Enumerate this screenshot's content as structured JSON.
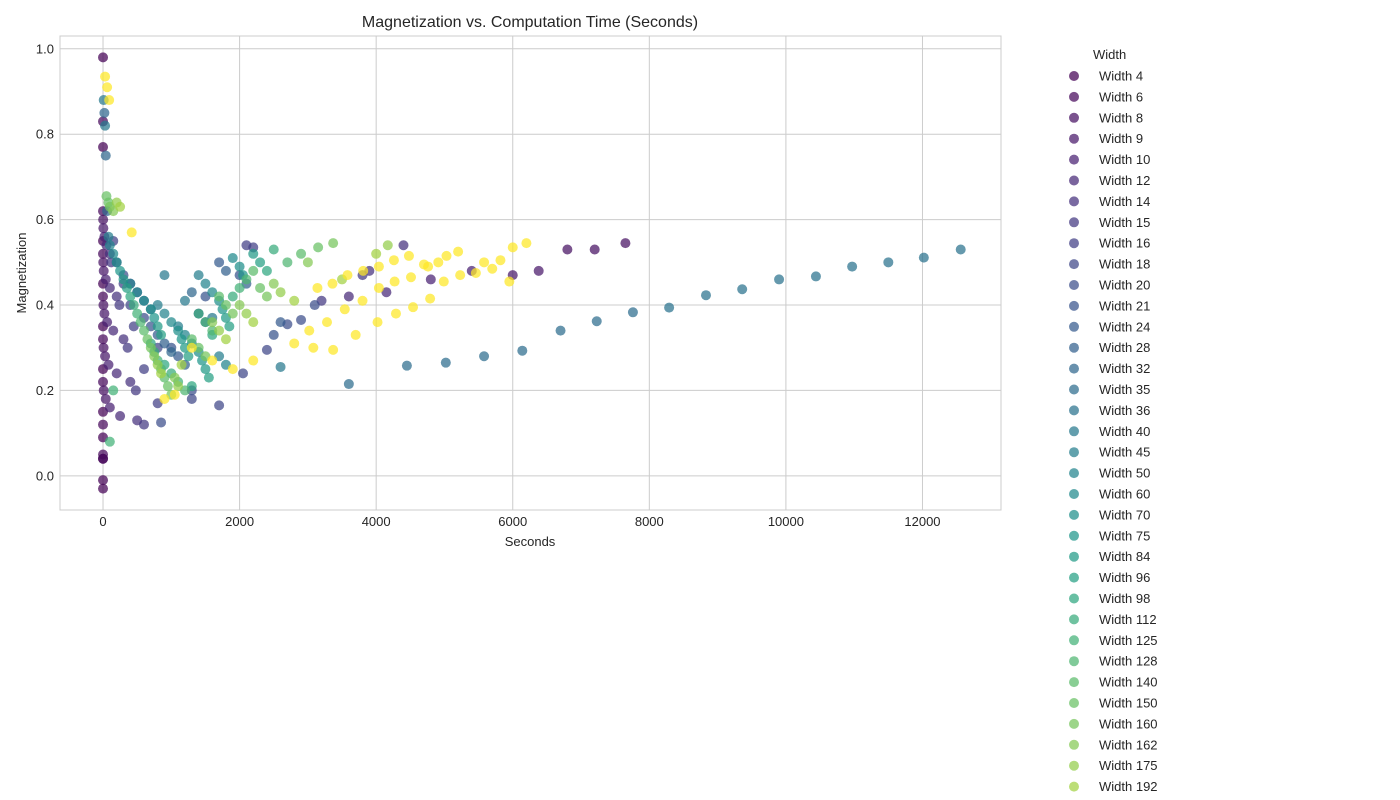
{
  "chart_data": {
    "type": "scatter",
    "title": "Magnetization vs. Computation Time (Seconds)",
    "xlabel": "Seconds",
    "ylabel": "Magnetization",
    "xlim": [
      -630,
      13150
    ],
    "ylim": [
      -0.08,
      1.03
    ],
    "x_ticks": [
      0,
      2000,
      4000,
      6000,
      8000,
      10000,
      12000
    ],
    "x_tick_labels": [
      "0",
      "2000",
      "4000",
      "6000",
      "8000",
      "10000",
      "12000"
    ],
    "y_ticks": [
      0.0,
      0.2,
      0.4,
      0.6,
      0.8,
      1.0
    ],
    "y_tick_labels": [
      "0.0",
      "0.2",
      "0.4",
      "0.6",
      "0.8",
      "1.0"
    ],
    "grid": true,
    "colormap": "viridis",
    "legend": {
      "title": "Width",
      "placement": "outside-right",
      "entries": [
        "Width 4",
        "Width 6",
        "Width 8",
        "Width 9",
        "Width 10",
        "Width 12",
        "Width 14",
        "Width 15",
        "Width 16",
        "Width 18",
        "Width 20",
        "Width 21",
        "Width 24",
        "Width 28",
        "Width 32",
        "Width 35",
        "Width 36",
        "Width 40",
        "Width 45",
        "Width 50",
        "Width 60",
        "Width 70",
        "Width 75",
        "Width 84",
        "Width 96",
        "Width 98",
        "Width 112",
        "Width 125",
        "Width 128",
        "Width 140",
        "Width 150",
        "Width 160",
        "Width 162",
        "Width 175",
        "Width 192"
      ]
    },
    "series": [
      {
        "name": "Width 4",
        "color": "#440154",
        "x": [
          0,
          0,
          0,
          0,
          0,
          0,
          0,
          0,
          0,
          0,
          0
        ],
        "y": [
          0.98,
          0.77,
          0.55,
          0.45,
          0.35,
          0.25,
          0.15,
          0.09,
          0.04,
          -0.01,
          -0.03
        ]
      },
      {
        "name": "Width 6",
        "color": "#46085c",
        "x": [
          0,
          0,
          0,
          0,
          0,
          0,
          0,
          0,
          0
        ],
        "y": [
          0.83,
          0.62,
          0.52,
          0.42,
          0.32,
          0.22,
          0.12,
          0.05,
          0.04
        ]
      },
      {
        "name": "Width 8",
        "color": "#471063",
        "x": [
          2,
          4,
          6,
          8,
          10,
          6800,
          7200,
          7650
        ],
        "y": [
          0.6,
          0.5,
          0.4,
          0.3,
          0.2,
          0.53,
          0.53,
          0.545
        ]
      },
      {
        "name": "Width 9",
        "color": "#48186a",
        "x": [
          5,
          10,
          20,
          30,
          40,
          6000,
          6380
        ],
        "y": [
          0.58,
          0.48,
          0.38,
          0.28,
          0.18,
          0.47,
          0.48
        ]
      },
      {
        "name": "Width 10",
        "color": "#482071",
        "x": [
          20,
          40,
          60,
          80,
          100,
          4800,
          5400
        ],
        "y": [
          0.56,
          0.46,
          0.36,
          0.26,
          0.16,
          0.46,
          0.48
        ]
      },
      {
        "name": "Width 12",
        "color": "#472877",
        "x": [
          50,
          100,
          150,
          200,
          250,
          3600,
          4150
        ],
        "y": [
          0.54,
          0.44,
          0.34,
          0.24,
          0.14,
          0.42,
          0.43
        ]
      },
      {
        "name": "Width 14",
        "color": "#45307d",
        "x": [
          100,
          200,
          300,
          400,
          500,
          3900,
          4400
        ],
        "y": [
          0.52,
          0.42,
          0.32,
          0.22,
          0.13,
          0.48,
          0.54
        ]
      },
      {
        "name": "Width 15",
        "color": "#433781",
        "x": [
          120,
          240,
          360,
          480,
          600,
          3200,
          3800
        ],
        "y": [
          0.5,
          0.4,
          0.3,
          0.2,
          0.12,
          0.41,
          0.47
        ]
      },
      {
        "name": "Width 16",
        "color": "#413e85",
        "x": [
          150,
          300,
          450,
          600,
          800,
          2100,
          2200
        ],
        "y": [
          0.55,
          0.45,
          0.35,
          0.25,
          0.17,
          0.54,
          0.535
        ]
      },
      {
        "name": "Width 18",
        "color": "#3e4688",
        "x": [
          200,
          400,
          800,
          1300,
          1700,
          2050,
          2400
        ],
        "y": [
          0.5,
          0.4,
          0.3,
          0.18,
          0.165,
          0.24,
          0.295
        ]
      },
      {
        "name": "Width 20",
        "color": "#3b4d8a",
        "x": [
          300,
          600,
          850,
          1300,
          2700,
          2900,
          3100
        ],
        "y": [
          0.47,
          0.37,
          0.125,
          0.2,
          0.355,
          0.365,
          0.4
        ]
      },
      {
        "name": "Width 21",
        "color": "#38538c",
        "x": [
          400,
          700,
          1000,
          1500,
          2000,
          2500
        ],
        "y": [
          0.45,
          0.35,
          0.3,
          0.42,
          0.47,
          0.33
        ]
      },
      {
        "name": "Width 24",
        "color": "#355a8d",
        "x": [
          500,
          800,
          1100,
          1400,
          1700,
          2600
        ],
        "y": [
          0.43,
          0.33,
          0.28,
          0.38,
          0.5,
          0.36
        ]
      },
      {
        "name": "Width 28",
        "color": "#32608d",
        "x": [
          600,
          900,
          1200,
          1500,
          1800,
          2100
        ],
        "y": [
          0.41,
          0.31,
          0.26,
          0.36,
          0.48,
          0.45
        ]
      },
      {
        "name": "Width 32",
        "color": "#2f668e",
        "x": [
          20,
          40,
          60,
          700,
          1000,
          1300
        ],
        "y": [
          0.85,
          0.75,
          0.62,
          0.39,
          0.29,
          0.43
        ]
      },
      {
        "name": "Width 35",
        "color": "#2c6c8e",
        "x": [
          3600,
          4450,
          5020,
          5580,
          6140,
          6700,
          7230,
          7760
        ],
        "y": [
          0.215,
          0.258,
          0.265,
          0.28,
          0.293,
          0.34,
          0.362,
          0.383
        ]
      },
      {
        "name": "Width 36",
        "color": "#2a728e",
        "x": [
          8290,
          8830,
          9360,
          9900,
          10440,
          10970,
          11500,
          12020,
          12560
        ],
        "y": [
          0.394,
          0.423,
          0.437,
          0.46,
          0.467,
          0.49,
          0.5,
          0.511,
          0.53
        ]
      },
      {
        "name": "Width 40",
        "color": "#27788e",
        "x": [
          10,
          30,
          900,
          1200,
          1600,
          2600
        ],
        "y": [
          0.88,
          0.82,
          0.47,
          0.41,
          0.37,
          0.255
        ]
      },
      {
        "name": "Width 45",
        "color": "#257e8d",
        "x": [
          80,
          400,
          800,
          1100,
          1400,
          1700
        ],
        "y": [
          0.56,
          0.45,
          0.4,
          0.35,
          0.47,
          0.28
        ]
      },
      {
        "name": "Width 50",
        "color": "#22838d",
        "x": [
          100,
          500,
          900,
          1200,
          1500,
          1800
        ],
        "y": [
          0.54,
          0.43,
          0.38,
          0.33,
          0.45,
          0.26
        ]
      },
      {
        "name": "Width 60",
        "color": "#20898c",
        "x": [
          150,
          600,
          1000,
          1300,
          1600,
          1900
        ],
        "y": [
          0.52,
          0.41,
          0.36,
          0.31,
          0.43,
          0.51
        ]
      },
      {
        "name": "Width 70",
        "color": "#1f8f8b",
        "x": [
          200,
          700,
          1100,
          1400,
          1700,
          2000
        ],
        "y": [
          0.5,
          0.39,
          0.34,
          0.29,
          0.41,
          0.49
        ]
      },
      {
        "name": "Width 75",
        "color": "#1f958a",
        "x": [
          250,
          750,
          1150,
          1450,
          1750,
          2050
        ],
        "y": [
          0.48,
          0.37,
          0.32,
          0.27,
          0.39,
          0.47
        ]
      },
      {
        "name": "Width 84",
        "color": "#219a87",
        "x": [
          300,
          800,
          1200,
          1500,
          1800,
          2200
        ],
        "y": [
          0.46,
          0.35,
          0.3,
          0.25,
          0.37,
          0.52
        ]
      },
      {
        "name": "Width 96",
        "color": "#26a084",
        "x": [
          350,
          850,
          1250,
          1550,
          1850,
          2300
        ],
        "y": [
          0.44,
          0.33,
          0.28,
          0.23,
          0.35,
          0.5
        ]
      },
      {
        "name": "Width 98",
        "color": "#2ea680",
        "x": [
          400,
          700,
          900,
          1300,
          1600,
          2400
        ],
        "y": [
          0.42,
          0.31,
          0.26,
          0.21,
          0.33,
          0.48
        ]
      },
      {
        "name": "Width 112",
        "color": "#38ab7c",
        "x": [
          450,
          750,
          1000,
          1400,
          1900,
          2500
        ],
        "y": [
          0.4,
          0.29,
          0.24,
          0.38,
          0.42,
          0.53
        ]
      },
      {
        "name": "Width 125",
        "color": "#43b177",
        "x": [
          100,
          150,
          500,
          800,
          1100,
          1500,
          2000
        ],
        "y": [
          0.08,
          0.2,
          0.38,
          0.27,
          0.22,
          0.36,
          0.44
        ]
      },
      {
        "name": "Width 128",
        "color": "#4fb671",
        "x": [
          550,
          850,
          1200,
          1600,
          2100,
          2700
        ],
        "y": [
          0.36,
          0.25,
          0.2,
          0.34,
          0.46,
          0.5
        ]
      },
      {
        "name": "Width 140",
        "color": "#5bbb6b",
        "x": [
          600,
          900,
          1300,
          1700,
          2200,
          2900
        ],
        "y": [
          0.34,
          0.23,
          0.32,
          0.42,
          0.48,
          0.52
        ]
      },
      {
        "name": "Width 150",
        "color": "#68c064",
        "x": [
          50,
          80,
          650,
          950,
          1400,
          1800,
          2300,
          3150
        ],
        "y": [
          0.655,
          0.64,
          0.32,
          0.21,
          0.3,
          0.4,
          0.44,
          0.535
        ]
      },
      {
        "name": "Width 160",
        "color": "#76c55c",
        "x": [
          100,
          700,
          1000,
          1500,
          1900,
          2400,
          3370
        ],
        "y": [
          0.63,
          0.3,
          0.19,
          0.28,
          0.38,
          0.42,
          0.545
        ]
      },
      {
        "name": "Width 162",
        "color": "#85c954",
        "x": [
          150,
          750,
          1050,
          1600,
          2000,
          2500,
          3000
        ],
        "y": [
          0.62,
          0.28,
          0.23,
          0.36,
          0.4,
          0.45,
          0.5
        ]
      },
      {
        "name": "Width 175",
        "color": "#93cd4b",
        "x": [
          200,
          800,
          1100,
          1700,
          2100,
          2600,
          4170
        ],
        "y": [
          0.64,
          0.26,
          0.21,
          0.34,
          0.38,
          0.43,
          0.54
        ]
      },
      {
        "name": "Width 192",
        "color": "#a2d142",
        "x": [
          250,
          850,
          1150,
          1800,
          2200,
          2800,
          3500,
          4000
        ],
        "y": [
          0.63,
          0.24,
          0.26,
          0.32,
          0.36,
          0.41,
          0.46,
          0.52
        ]
      }
    ],
    "unlisted_series": [
      {
        "color": "#fde725",
        "x": [
          30,
          60,
          90,
          420,
          900,
          1050,
          1300,
          1600,
          1900,
          2200,
          2800,
          3080,
          3370,
          3700,
          4020,
          4290,
          4540,
          4790
        ],
        "y": [
          0.935,
          0.91,
          0.88,
          0.57,
          0.18,
          0.19,
          0.3,
          0.27,
          0.25,
          0.27,
          0.31,
          0.3,
          0.295,
          0.33,
          0.36,
          0.38,
          0.395,
          0.415
        ]
      },
      {
        "color": "#fde725",
        "x": [
          3020,
          3280,
          3540,
          3800,
          4040,
          4270,
          4510,
          4760,
          4990,
          5230,
          5460,
          5700,
          5950
        ],
        "y": [
          0.34,
          0.36,
          0.39,
          0.41,
          0.44,
          0.455,
          0.465,
          0.49,
          0.455,
          0.47,
          0.475,
          0.485,
          0.455
        ]
      },
      {
        "color": "#fde725",
        "x": [
          3140,
          3360,
          3580,
          3810,
          4040,
          4260,
          4480,
          4700,
          4910,
          5030,
          5200,
          5580,
          5820,
          6000,
          6200
        ],
        "y": [
          0.44,
          0.45,
          0.47,
          0.48,
          0.49,
          0.505,
          0.515,
          0.495,
          0.5,
          0.515,
          0.525,
          0.5,
          0.505,
          0.535,
          0.545
        ]
      }
    ]
  }
}
